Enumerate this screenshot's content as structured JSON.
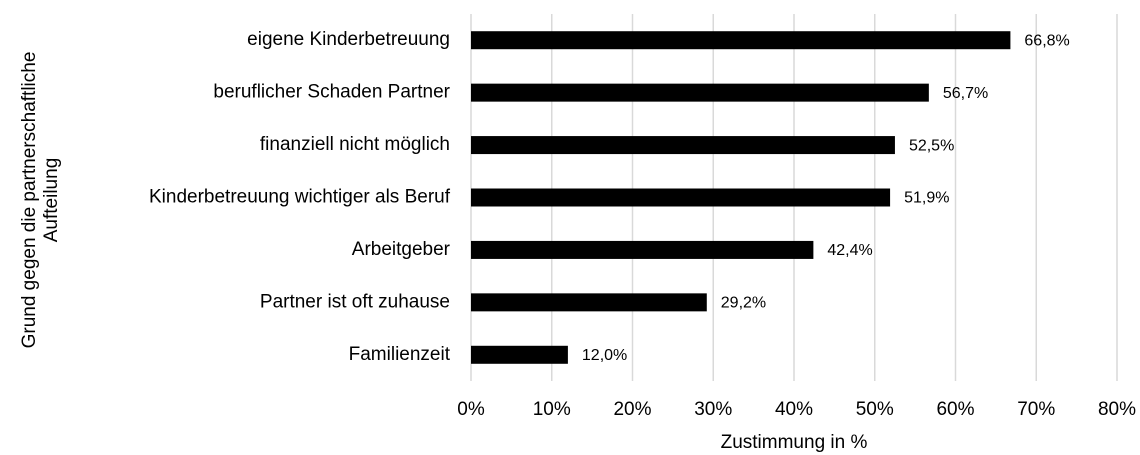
{
  "chart_data": {
    "type": "bar",
    "orientation": "horizontal",
    "xlabel": "Zustimmung in %",
    "ylabel": [
      "Grund gegen die partnerschaftliche",
      "Aufteilung"
    ],
    "categories": [
      "eigene Kinderbetreuung",
      "beruflicher Schaden Partner",
      "finanziell nicht möglich",
      "Kinderbetreuung wichtiger als Beruf",
      "Arbeitgeber",
      "Partner ist oft zuhause",
      "Familienzeit"
    ],
    "values": [
      66.8,
      56.7,
      52.5,
      51.9,
      42.4,
      29.2,
      12.0
    ],
    "value_labels": [
      "66,8%",
      "56,7%",
      "52,5%",
      "51,9%",
      "42,4%",
      "29,2%",
      "12,0%"
    ],
    "color": "#000000",
    "xlim": [
      0,
      80
    ],
    "xticks": [
      {
        "value": 0,
        "label": "0%"
      },
      {
        "value": 10,
        "label": "10%"
      },
      {
        "value": 20,
        "label": "20%"
      },
      {
        "value": 30,
        "label": "30%"
      },
      {
        "value": 40,
        "label": "40%"
      },
      {
        "value": 50,
        "label": "50%"
      },
      {
        "value": 60,
        "label": "60%"
      },
      {
        "value": 70,
        "label": "70%"
      },
      {
        "value": 80,
        "label": "80%"
      }
    ],
    "grid": true
  }
}
